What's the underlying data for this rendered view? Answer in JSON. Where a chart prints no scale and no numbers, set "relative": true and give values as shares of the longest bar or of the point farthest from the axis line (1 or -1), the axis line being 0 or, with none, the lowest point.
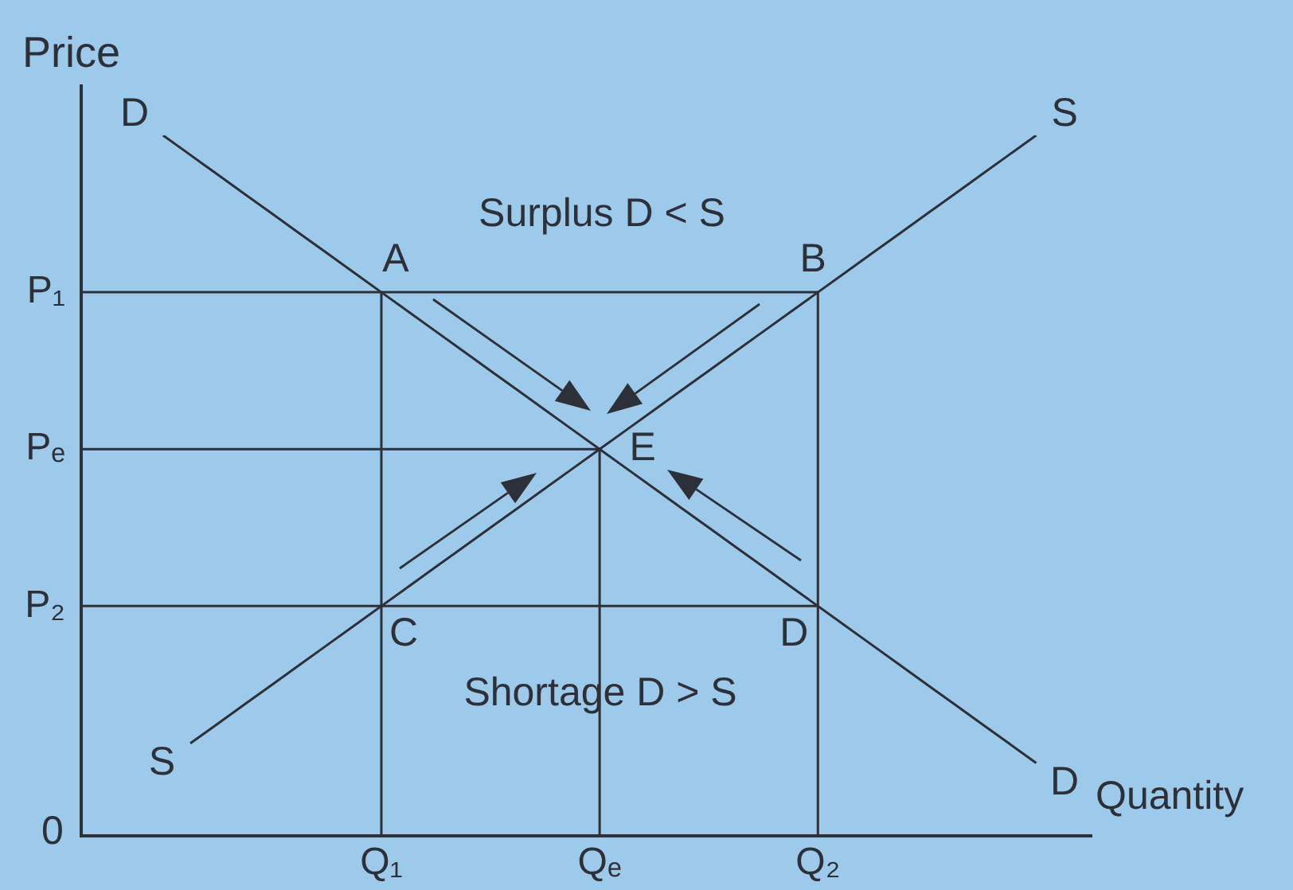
{
  "chart_data": {
    "type": "line",
    "relative": true,
    "xlabel": "Quantity",
    "ylabel": "Price",
    "legend": false,
    "marker": "none",
    "line_style": "solid",
    "categories": [
      null,
      null,
      null,
      null,
      null,
      null,
      null,
      null,
      null,
      null,
      null,
      "Q₁",
      null,
      null,
      null,
      null,
      null,
      null,
      null,
      "Qₑ",
      null,
      null,
      null,
      null,
      null,
      null,
      null,
      "Q₂",
      null,
      null,
      null,
      null,
      null,
      null,
      null,
      null,
      null,
      null
    ],
    "series": [
      {
        "name": "D",
        "color": "#2e3039",
        "values": [
          null,
          null,
          null,
          1,
          0.972,
          0.944,
          0.916,
          0.888,
          0.86,
          0.832,
          0.804,
          0.776,
          0.748,
          0.72,
          0.692,
          0.664,
          0.636,
          0.608,
          0.58,
          0.552,
          0.524,
          0.496,
          0.468,
          0.44,
          0.412,
          0.384,
          0.356,
          0.328,
          0.3,
          0.272,
          0.244,
          0.216,
          0.188,
          0.16,
          0.132,
          0.104,
          null,
          null
        ]
      },
      {
        "name": "S",
        "color": "#2e3039",
        "values": [
          null,
          null,
          null,
          null,
          0.132,
          0.16,
          0.188,
          0.216,
          0.244,
          0.272,
          0.3,
          0.328,
          0.356,
          0.384,
          0.412,
          0.44,
          0.468,
          0.496,
          0.524,
          0.552,
          0.58,
          0.608,
          0.636,
          0.664,
          0.692,
          0.72,
          0.748,
          0.776,
          0.804,
          0.832,
          0.86,
          0.888,
          0.916,
          0.944,
          0.972,
          1,
          null,
          null
        ]
      },
      {
        "name": "P₁",
        "color": "#2e3039",
        "values": [
          0.776,
          0.776,
          0.776,
          0.776,
          0.776,
          0.776,
          0.776,
          0.776,
          0.776,
          0.776,
          0.776,
          0.776,
          0.776,
          0.776,
          0.776,
          0.776,
          0.776,
          0.776,
          0.776,
          0.776,
          0.776,
          0.776,
          0.776,
          0.776,
          0.776,
          0.776,
          0.776,
          0.776,
          null,
          null,
          null,
          null,
          null,
          null,
          null,
          null,
          null,
          null
        ]
      },
      {
        "name": "Pₑ",
        "color": "#2e3039",
        "values": [
          0.552,
          0.552,
          0.552,
          0.552,
          0.552,
          0.552,
          0.552,
          0.552,
          0.552,
          0.552,
          0.552,
          0.552,
          0.552,
          0.552,
          0.552,
          0.552,
          0.552,
          0.552,
          0.552,
          0.552,
          null,
          null,
          null,
          null,
          null,
          null,
          null,
          null,
          null,
          null,
          null,
          null,
          null,
          null,
          null,
          null,
          null,
          null
        ]
      },
      {
        "name": "P₂",
        "color": "#2e3039",
        "values": [
          0.328,
          0.328,
          0.328,
          0.328,
          0.328,
          0.328,
          0.328,
          0.328,
          0.328,
          0.328,
          0.328,
          0.328,
          0.328,
          0.328,
          0.328,
          0.328,
          0.328,
          0.328,
          0.328,
          0.328,
          0.328,
          0.328,
          0.328,
          0.328,
          0.328,
          0.328,
          0.328,
          0.328,
          null,
          null,
          null,
          null,
          null,
          null,
          null,
          null,
          null,
          null
        ]
      },
      {
        "color": "#2e3039",
        "x": [
          "Q₁",
          "Q₁"
        ],
        "values": [
          0,
          0.776
        ]
      },
      {
        "color": "#2e3039",
        "x": [
          "Qₑ",
          "Qₑ"
        ],
        "values": [
          0,
          0.552
        ]
      },
      {
        "color": "#2e3039",
        "x": [
          "Q₂",
          "Q₂"
        ],
        "values": [
          0,
          0.776
        ]
      }
    ],
    "annotations": [
      {
        "text": "A",
        "x": "Q₁",
        "y": 0.776
      },
      {
        "text": "B",
        "x": "Q₂",
        "y": 0.776
      },
      {
        "text": "C",
        "x": "Q₁",
        "y": 0.328
      },
      {
        "text": "D",
        "x": "Q₂",
        "y": 0.328
      },
      {
        "text": "E",
        "x": "Qₑ",
        "y": 0.552
      },
      "Surplus D < S",
      "Shortage D > S",
      "0"
    ]
  }
}
